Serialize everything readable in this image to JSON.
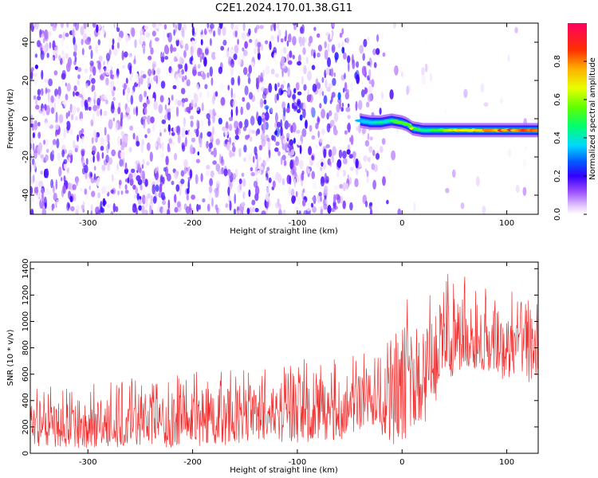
{
  "title": "C2E1.2024.170.01.38.G11",
  "colors": {
    "snr_line": "#f03232",
    "axis": "#000000",
    "colormap": [
      "#ffffff",
      "#e6ccff",
      "#b070ff",
      "#7a1aff",
      "#3300ff",
      "#0040ff",
      "#00c8ff",
      "#00ff80",
      "#40ff00",
      "#d0ff00",
      "#ffd000",
      "#ff6000",
      "#ff0000",
      "#ff0050"
    ]
  },
  "chart_data": [
    {
      "type": "heatmap",
      "xlabel": "Height of straight line (km)",
      "ylabel": "Frequency (Hz)",
      "xlim": [
        -355,
        130
      ],
      "ylim": [
        -50,
        50
      ],
      "xticks": [
        -300,
        -200,
        -100,
        0,
        100
      ],
      "yticks": [
        -40,
        -20,
        0,
        20,
        40
      ],
      "colorbar": {
        "label": "Normalized spectral amplitude",
        "range": [
          0.0,
          1.0
        ],
        "ticks": [
          0.0,
          0.2,
          0.4,
          0.6,
          0.8
        ]
      },
      "signal_track": {
        "x": [
          -40,
          -30,
          -20,
          -10,
          0,
          5,
          10,
          20,
          40,
          60,
          80,
          100,
          130
        ],
        "frequency": [
          -1,
          -2,
          -2,
          -1,
          -2,
          -3,
          -5,
          -6,
          -6,
          -6,
          -6,
          -6,
          -6
        ],
        "amplitude": [
          0.35,
          0.4,
          0.45,
          0.5,
          0.55,
          0.6,
          0.65,
          0.45,
          0.6,
          0.75,
          0.8,
          0.85,
          0.85
        ]
      }
    },
    {
      "type": "line",
      "xlabel": "Height of straight line (km)",
      "ylabel": "SNR (10 * v/v)",
      "xlim": [
        -355,
        130
      ],
      "ylim": [
        0,
        1450
      ],
      "xticks": [
        -300,
        -200,
        -100,
        0,
        100
      ],
      "yticks": [
        0,
        200,
        400,
        600,
        800,
        1000,
        1200,
        1400
      ],
      "envelope": {
        "x": [
          -355,
          -300,
          -250,
          -200,
          -150,
          -100,
          -60,
          -40,
          -30,
          -20,
          -10,
          0,
          10,
          20,
          30,
          40,
          50,
          60,
          80,
          100,
          130
        ],
        "low": [
          40,
          40,
          40,
          50,
          60,
          80,
          100,
          150,
          200,
          120,
          40,
          40,
          100,
          200,
          350,
          500,
          600,
          650,
          600,
          550,
          520
        ],
        "median": [
          200,
          200,
          230,
          260,
          290,
          300,
          310,
          340,
          420,
          500,
          550,
          580,
          630,
          680,
          740,
          800,
          850,
          820,
          800,
          780,
          800
        ],
        "high": [
          420,
          430,
          480,
          520,
          560,
          580,
          600,
          650,
          700,
          900,
          950,
          1000,
          1050,
          1100,
          1150,
          1200,
          1230,
          1200,
          1150,
          1100,
          1050
        ]
      }
    }
  ]
}
